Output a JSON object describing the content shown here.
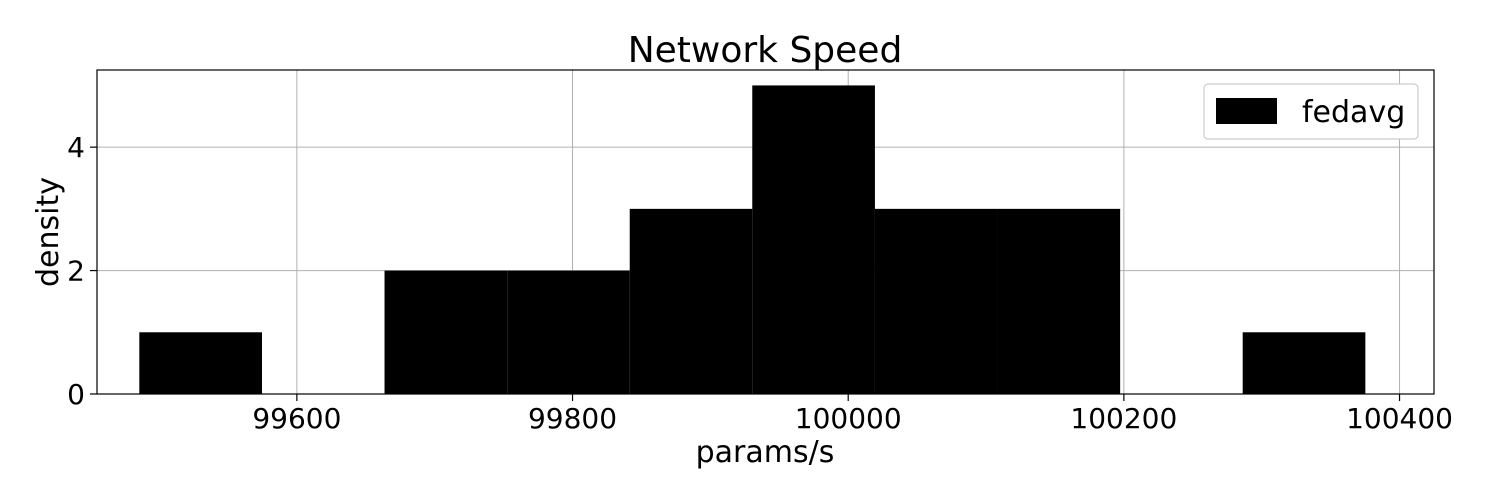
{
  "chart_data": {
    "type": "histogram",
    "title": "Network Speed",
    "xlabel": "params/s",
    "ylabel": "density",
    "xlim": [
      99455,
      100425
    ],
    "ylim": [
      0,
      5.25
    ],
    "x_ticks": [
      99600,
      99800,
      100000,
      100200,
      100400
    ],
    "y_ticks": [
      0,
      2,
      4
    ],
    "grid": true,
    "legend": {
      "position": "top-right",
      "entries": [
        "fedavg"
      ]
    },
    "series": [
      {
        "name": "fedavg",
        "color": "#000000",
        "bin_edges": [
          99485.7,
          99574.7,
          99663.6,
          99752.6,
          99841.5,
          99930.4,
          100019.4,
          100108.3,
          100197.3,
          100286.2,
          100375.2
        ],
        "values": [
          1,
          0,
          2,
          2,
          3,
          5,
          3,
          3,
          0,
          1
        ]
      }
    ]
  }
}
